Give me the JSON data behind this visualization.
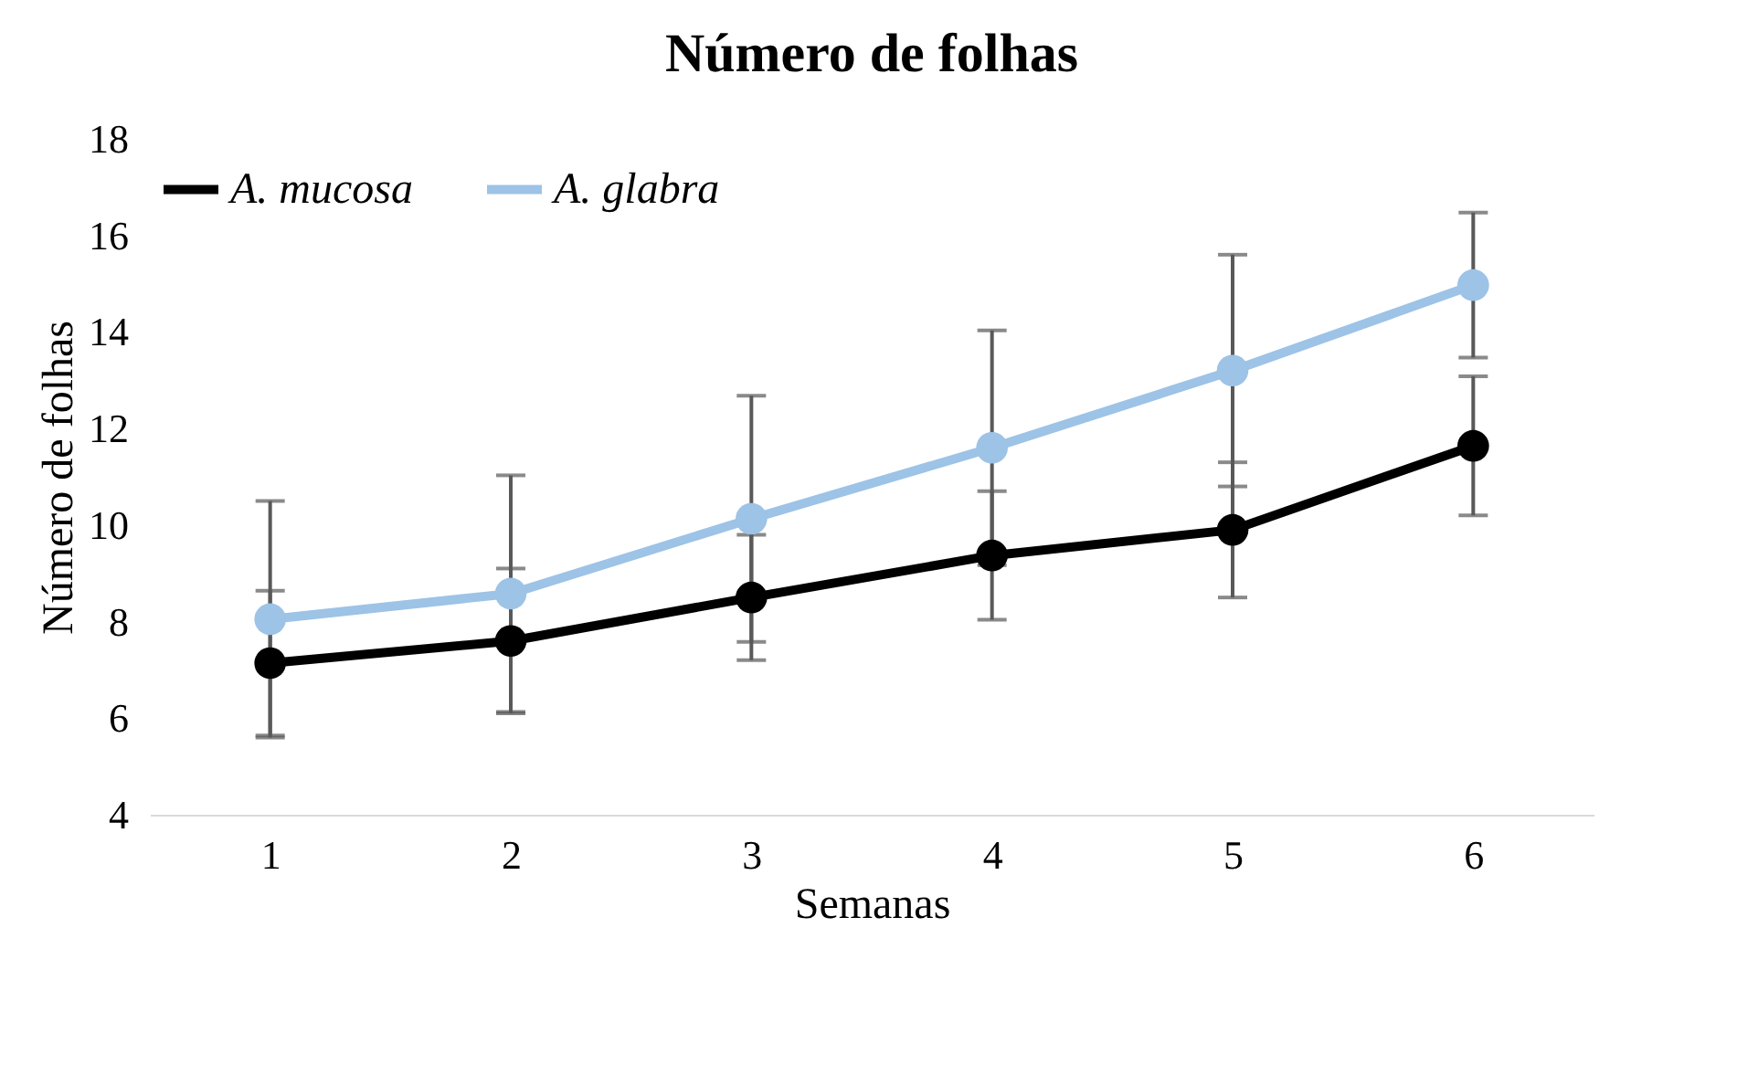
{
  "chart_data": {
    "type": "line",
    "title": "Número de folhas",
    "xlabel": "Semanas",
    "ylabel": "Número de folhas",
    "categories": [
      "1",
      "2",
      "3",
      "4",
      "5",
      "6"
    ],
    "series": [
      {
        "name": "A. mucosa",
        "color": "#000000",
        "values": [
          7.14,
          7.6,
          8.5,
          9.37,
          9.9,
          11.64
        ],
        "errors": [
          1.5,
          1.5,
          1.3,
          1.33,
          1.4,
          1.44
        ]
      },
      {
        "name": "A. glabra",
        "color": "#9dc3e6",
        "values": [
          8.05,
          8.58,
          10.13,
          11.6,
          13.2,
          14.97
        ],
        "errors": [
          2.45,
          2.45,
          2.55,
          2.43,
          2.4,
          1.5
        ]
      }
    ],
    "ylim": [
      4,
      18
    ],
    "yticks": [
      4,
      6,
      8,
      10,
      12,
      14,
      16,
      18
    ],
    "grid": false,
    "legend": "top left",
    "marker": "circle",
    "line_style": "solid"
  }
}
